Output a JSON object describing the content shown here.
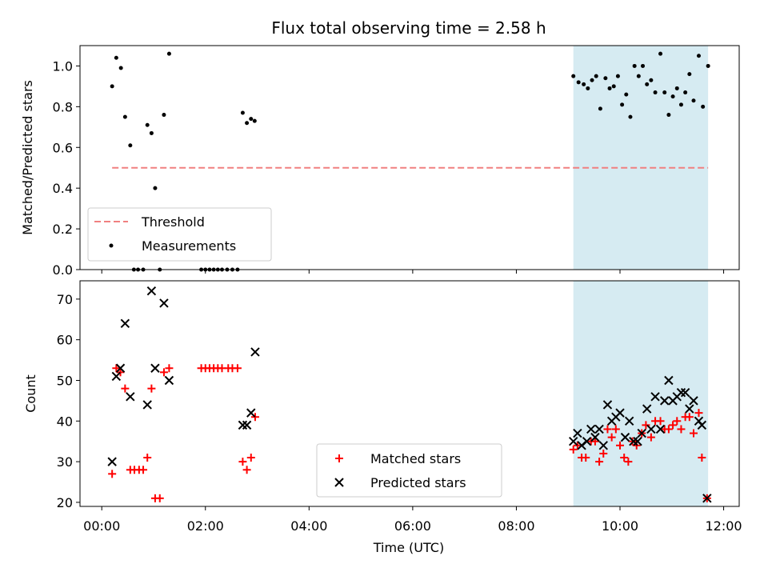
{
  "chart_data": [
    {
      "type": "scatter",
      "title": "Flux total observing time = 2.58 h",
      "xlabel": "",
      "ylabel": "Matched/Predicted stars",
      "ylim": [
        0,
        1.1
      ],
      "yticks": [
        "0.0",
        "0.2",
        "0.4",
        "0.6",
        "0.8",
        "1.0"
      ],
      "xlim_hours": [
        -0.42,
        12.3
      ],
      "highlight_span_hours": [
        9.1,
        11.7
      ],
      "highlight_color": "#add8e6",
      "legend_position": "lower-left",
      "threshold": {
        "name": "Threshold",
        "value": 0.5,
        "x_range_hours": [
          0.2,
          11.7
        ],
        "color": "#f08080"
      },
      "series": [
        {
          "name": "Measurements",
          "color": "#000000",
          "points": [
            [
              0.2,
              0.9
            ],
            [
              0.28,
              1.04
            ],
            [
              0.37,
              0.99
            ],
            [
              0.45,
              0.75
            ],
            [
              0.55,
              0.61
            ],
            [
              0.62,
              0.0
            ],
            [
              0.7,
              0.0
            ],
            [
              0.8,
              0.0
            ],
            [
              0.88,
              0.71
            ],
            [
              0.96,
              0.67
            ],
            [
              1.03,
              0.4
            ],
            [
              1.12,
              0.0
            ],
            [
              1.2,
              0.76
            ],
            [
              1.3,
              1.06
            ],
            [
              1.92,
              0.0
            ],
            [
              2.0,
              0.0
            ],
            [
              2.08,
              0.0
            ],
            [
              2.16,
              0.0
            ],
            [
              2.24,
              0.0
            ],
            [
              2.32,
              0.0
            ],
            [
              2.42,
              0.0
            ],
            [
              2.52,
              0.0
            ],
            [
              2.62,
              0.0
            ],
            [
              2.72,
              0.77
            ],
            [
              2.8,
              0.72
            ],
            [
              2.88,
              0.74
            ],
            [
              2.95,
              0.73
            ],
            [
              9.1,
              0.95
            ],
            [
              9.2,
              0.92
            ],
            [
              9.3,
              0.91
            ],
            [
              9.38,
              0.89
            ],
            [
              9.46,
              0.93
            ],
            [
              9.54,
              0.95
            ],
            [
              9.62,
              0.79
            ],
            [
              9.72,
              0.94
            ],
            [
              9.8,
              0.89
            ],
            [
              9.88,
              0.9
            ],
            [
              9.96,
              0.95
            ],
            [
              10.04,
              0.81
            ],
            [
              10.12,
              0.86
            ],
            [
              10.2,
              0.75
            ],
            [
              10.28,
              1.0
            ],
            [
              10.36,
              0.95
            ],
            [
              10.44,
              1.0
            ],
            [
              10.52,
              0.91
            ],
            [
              10.6,
              0.93
            ],
            [
              10.68,
              0.87
            ],
            [
              10.78,
              1.06
            ],
            [
              10.86,
              0.87
            ],
            [
              10.94,
              0.76
            ],
            [
              11.02,
              0.85
            ],
            [
              11.1,
              0.89
            ],
            [
              11.18,
              0.81
            ],
            [
              11.26,
              0.87
            ],
            [
              11.34,
              0.96
            ],
            [
              11.42,
              0.83
            ],
            [
              11.52,
              1.05
            ],
            [
              11.6,
              0.8
            ],
            [
              11.7,
              1.0
            ]
          ]
        }
      ]
    },
    {
      "type": "scatter",
      "title": "",
      "xlabel": "Time (UTC)",
      "ylabel": "Count",
      "ylim": [
        19,
        74.5
      ],
      "yticks": [
        "20",
        "30",
        "40",
        "50",
        "60",
        "70"
      ],
      "xlim_hours": [
        -0.42,
        12.3
      ],
      "xticks": [
        "00:00",
        "02:00",
        "04:00",
        "06:00",
        "08:00",
        "10:00",
        "12:00"
      ],
      "highlight_span_hours": [
        9.1,
        11.7
      ],
      "highlight_color": "#add8e6",
      "legend_position": "lower-center",
      "series": [
        {
          "name": "Matched stars",
          "marker": "plus",
          "color": "#ff0000",
          "points": [
            [
              0.2,
              27
            ],
            [
              0.28,
              53
            ],
            [
              0.36,
              52
            ],
            [
              0.45,
              48
            ],
            [
              0.55,
              28
            ],
            [
              0.63,
              28
            ],
            [
              0.72,
              28
            ],
            [
              0.8,
              28
            ],
            [
              0.88,
              31
            ],
            [
              0.96,
              48
            ],
            [
              1.03,
              21
            ],
            [
              1.12,
              21
            ],
            [
              1.2,
              52
            ],
            [
              1.3,
              53
            ],
            [
              1.92,
              53
            ],
            [
              2.0,
              53
            ],
            [
              2.08,
              53
            ],
            [
              2.16,
              53
            ],
            [
              2.24,
              53
            ],
            [
              2.32,
              53
            ],
            [
              2.44,
              53
            ],
            [
              2.52,
              53
            ],
            [
              2.62,
              53
            ],
            [
              2.72,
              30
            ],
            [
              2.8,
              28
            ],
            [
              2.88,
              31
            ],
            [
              2.96,
              41
            ],
            [
              9.1,
              33
            ],
            [
              9.18,
              34
            ],
            [
              9.26,
              31
            ],
            [
              9.34,
              31
            ],
            [
              9.44,
              35
            ],
            [
              9.52,
              35
            ],
            [
              9.6,
              30
            ],
            [
              9.68,
              32
            ],
            [
              9.76,
              38
            ],
            [
              9.84,
              36
            ],
            [
              9.92,
              38
            ],
            [
              10.0,
              34
            ],
            [
              10.08,
              31
            ],
            [
              10.16,
              30
            ],
            [
              10.24,
              35
            ],
            [
              10.32,
              34
            ],
            [
              10.42,
              37
            ],
            [
              10.5,
              39
            ],
            [
              10.6,
              36
            ],
            [
              10.68,
              40
            ],
            [
              10.78,
              40
            ],
            [
              10.86,
              38
            ],
            [
              10.94,
              38
            ],
            [
              11.02,
              39
            ],
            [
              11.1,
              40
            ],
            [
              11.18,
              38
            ],
            [
              11.26,
              41
            ],
            [
              11.34,
              41
            ],
            [
              11.42,
              37
            ],
            [
              11.52,
              42
            ],
            [
              11.58,
              31
            ],
            [
              11.68,
              21
            ]
          ]
        },
        {
          "name": "Predicted stars",
          "marker": "x",
          "color": "#000000",
          "points": [
            [
              0.2,
              30
            ],
            [
              0.28,
              51
            ],
            [
              0.36,
              53
            ],
            [
              0.45,
              64
            ],
            [
              0.55,
              46
            ],
            [
              0.88,
              44
            ],
            [
              0.96,
              72
            ],
            [
              1.03,
              53
            ],
            [
              1.2,
              69
            ],
            [
              1.3,
              50
            ],
            [
              2.72,
              39
            ],
            [
              2.8,
              39
            ],
            [
              2.88,
              42
            ],
            [
              2.96,
              57
            ],
            [
              9.1,
              35
            ],
            [
              9.18,
              37
            ],
            [
              9.26,
              34
            ],
            [
              9.36,
              35
            ],
            [
              9.44,
              38
            ],
            [
              9.52,
              36
            ],
            [
              9.6,
              38
            ],
            [
              9.68,
              34
            ],
            [
              9.76,
              44
            ],
            [
              9.84,
              40
            ],
            [
              9.92,
              41
            ],
            [
              10.0,
              42
            ],
            [
              10.1,
              36
            ],
            [
              10.18,
              40
            ],
            [
              10.26,
              35
            ],
            [
              10.34,
              35
            ],
            [
              10.42,
              37
            ],
            [
              10.52,
              43
            ],
            [
              10.6,
              38
            ],
            [
              10.68,
              46
            ],
            [
              10.78,
              38
            ],
            [
              10.86,
              45
            ],
            [
              10.94,
              50
            ],
            [
              11.02,
              45
            ],
            [
              11.1,
              46
            ],
            [
              11.18,
              47
            ],
            [
              11.26,
              47
            ],
            [
              11.34,
              43
            ],
            [
              11.42,
              45
            ],
            [
              11.52,
              40
            ],
            [
              11.58,
              39
            ],
            [
              11.68,
              21
            ]
          ]
        }
      ]
    }
  ]
}
